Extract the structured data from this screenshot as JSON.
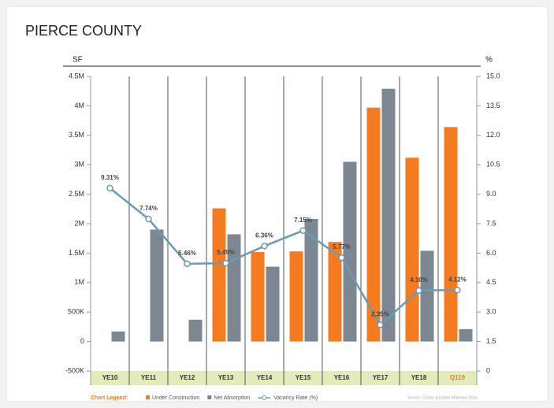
{
  "chart_data": {
    "type": "bar",
    "title": "PIERCE COUNTY",
    "y_label": "SF",
    "y2_label": "%",
    "categories": [
      "YE10",
      "YE11",
      "YE12",
      "YE13",
      "YE14",
      "YE15",
      "YE16",
      "YE17",
      "YE18",
      "Q119"
    ],
    "series": [
      {
        "name": "Under Construction",
        "color": "#f47b20",
        "values": [
          null,
          null,
          null,
          2260000,
          1520000,
          1530000,
          1690000,
          3970000,
          3120000,
          3640000
        ]
      },
      {
        "name": "Net Absorption",
        "color": "#7d8791",
        "values": [
          170000,
          1900000,
          370000,
          1820000,
          1270000,
          2080000,
          3050000,
          4290000,
          1540000,
          210000
        ]
      },
      {
        "name": "Vacancy Rate (%)",
        "type": "line",
        "axis": "y2",
        "color": "#6a9ab5",
        "values": [
          9.31,
          7.74,
          5.46,
          5.49,
          6.36,
          7.15,
          5.77,
          2.35,
          4.1,
          4.12
        ],
        "value_labels": [
          "9.31%",
          "7.74%",
          "5.46%",
          "5.49%",
          "6.36%",
          "7.15%",
          "5.77%",
          "2.35%",
          "4.10%",
          "4.12%"
        ]
      }
    ],
    "ylim": [
      -500000,
      4500000
    ],
    "yticks": [
      {
        "value": -500000,
        "label": "-500K"
      },
      0,
      {
        "value": 500000,
        "label": "500K"
      },
      {
        "value": 1000000,
        "label": "1M"
      },
      {
        "value": 1500000,
        "label": "1.5M"
      },
      {
        "value": 2000000,
        "label": "2M"
      },
      {
        "value": 2500000,
        "label": "2.5M"
      },
      {
        "value": 3000000,
        "label": "3M"
      },
      {
        "value": 3500000,
        "label": "3.5M"
      },
      {
        "value": 4000000,
        "label": "4M"
      },
      {
        "value": 4500000,
        "label": "4.5M"
      }
    ],
    "y2lim": [
      0,
      15
    ],
    "y2ticks": [
      0,
      {
        "value": 1.5,
        "label": "1.5"
      },
      {
        "value": 3,
        "label": "3.0"
      },
      {
        "value": 4.5,
        "label": "4.5"
      },
      {
        "value": 6,
        "label": "6.0"
      },
      {
        "value": 7.5,
        "label": "7.5"
      },
      {
        "value": 9,
        "label": "9.0"
      },
      {
        "value": 10.5,
        "label": "10.5"
      },
      {
        "value": 12,
        "label": "12.0"
      },
      {
        "value": 13.5,
        "label": "13.5"
      },
      {
        "value": 15,
        "label": "15.0"
      }
    ],
    "legend_title": "Chart Legend:",
    "source": "Source: CoStar & Kidder Mathews Data"
  }
}
